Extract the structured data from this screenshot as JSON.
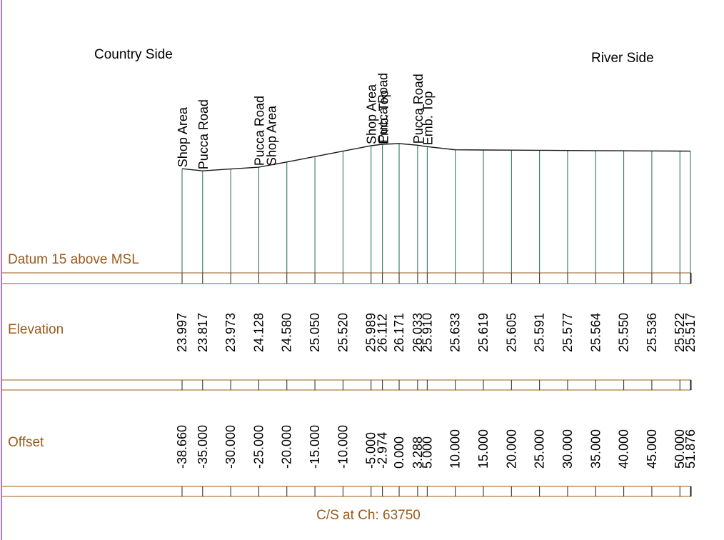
{
  "labels": {
    "country_side": "Country Side",
    "river_side": "River Side",
    "datum": "Datum 15 above MSL",
    "elevation_row": "Elevation",
    "offset_row": "Offset",
    "caption": "C/S at Ch: 63750"
  },
  "colors": {
    "row_label": "#9c5a1a",
    "band_lines": "#9c5a1a",
    "station_lines": "#1f6b52",
    "profile": "#1a1a1a",
    "left_border": "#8a4fd0"
  },
  "chart_data": {
    "type": "cross-section",
    "title": "C/S at Ch: 63750",
    "datum": 15,
    "stations": [
      {
        "offset": -38.66,
        "offset_label": "-38.660",
        "elevation": 23.997,
        "elevation_label": "23.997",
        "features": [
          "Shop Area"
        ]
      },
      {
        "offset": -35.0,
        "offset_label": "-35.000",
        "elevation": 23.817,
        "elevation_label": "23.817",
        "features": [
          "Pucca Road"
        ]
      },
      {
        "offset": -30.0,
        "offset_label": "-30.000",
        "elevation": 23.973,
        "elevation_label": "23.973",
        "features": []
      },
      {
        "offset": -25.0,
        "offset_label": "-25.000",
        "elevation": 24.128,
        "elevation_label": "24.128",
        "features": [
          "Pucca Road",
          "Shop Area"
        ]
      },
      {
        "offset": -20.0,
        "offset_label": "-20.000",
        "elevation": 24.58,
        "elevation_label": "24.580",
        "features": []
      },
      {
        "offset": -15.0,
        "offset_label": "-15.000",
        "elevation": 25.05,
        "elevation_label": "25.050",
        "features": []
      },
      {
        "offset": -10.0,
        "offset_label": "-10.000",
        "elevation": 25.52,
        "elevation_label": "25.520",
        "features": []
      },
      {
        "offset": -5.0,
        "offset_label": "-5.000",
        "elevation": 25.989,
        "elevation_label": "25.989",
        "features": [
          "Shop Area",
          "Emb. Top"
        ]
      },
      {
        "offset": -2.974,
        "offset_label": "-2.974",
        "elevation": 26.112,
        "elevation_label": "26.112",
        "features": [
          "Pucca Road"
        ]
      },
      {
        "offset": 0.0,
        "offset_label": "0.000",
        "elevation": 26.171,
        "elevation_label": "26.171",
        "features": []
      },
      {
        "offset": 3.288,
        "offset_label": "3.288",
        "elevation": 26.033,
        "elevation_label": "26.033",
        "features": [
          "Pucca Road"
        ]
      },
      {
        "offset": 5.0,
        "offset_label": "5.000",
        "elevation": 25.91,
        "elevation_label": "25.910",
        "features": [
          "Emb. Top"
        ]
      },
      {
        "offset": 10.0,
        "offset_label": "10.000",
        "elevation": 25.633,
        "elevation_label": "25.633",
        "features": []
      },
      {
        "offset": 15.0,
        "offset_label": "15.000",
        "elevation": 25.619,
        "elevation_label": "25.619",
        "features": []
      },
      {
        "offset": 20.0,
        "offset_label": "20.000",
        "elevation": 25.605,
        "elevation_label": "25.605",
        "features": []
      },
      {
        "offset": 25.0,
        "offset_label": "25.000",
        "elevation": 25.591,
        "elevation_label": "25.591",
        "features": []
      },
      {
        "offset": 30.0,
        "offset_label": "30.000",
        "elevation": 25.577,
        "elevation_label": "25.577",
        "features": []
      },
      {
        "offset": 35.0,
        "offset_label": "35.000",
        "elevation": 25.564,
        "elevation_label": "25.564",
        "features": []
      },
      {
        "offset": 40.0,
        "offset_label": "40.000",
        "elevation": 25.55,
        "elevation_label": "25.550",
        "features": []
      },
      {
        "offset": 45.0,
        "offset_label": "45.000",
        "elevation": 25.536,
        "elevation_label": "25.536",
        "features": []
      },
      {
        "offset": 50.0,
        "offset_label": "50.000",
        "elevation": 25.522,
        "elevation_label": "25.522",
        "features": []
      },
      {
        "offset": 51.876,
        "offset_label": "51.876",
        "elevation": 25.517,
        "elevation_label": "25.517",
        "features": []
      }
    ]
  }
}
